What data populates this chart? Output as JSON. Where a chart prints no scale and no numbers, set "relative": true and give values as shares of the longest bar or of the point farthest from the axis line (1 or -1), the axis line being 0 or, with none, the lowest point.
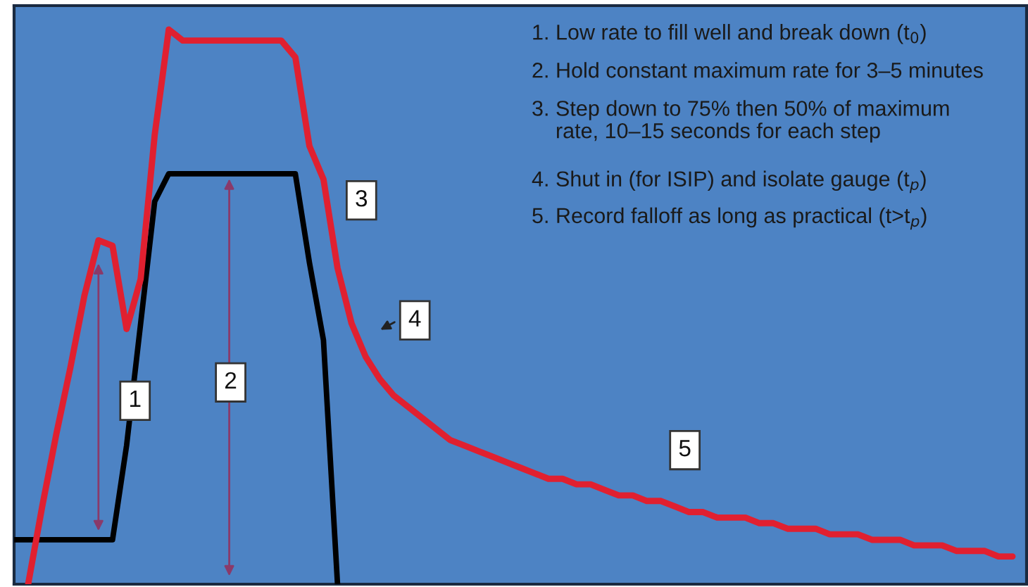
{
  "chart_data": {
    "type": "line",
    "relative": true,
    "marker": "none",
    "line_style": "solid",
    "categories": [
      null,
      null,
      null,
      null,
      null,
      null,
      null,
      null,
      null,
      null,
      null,
      null,
      null,
      null,
      null,
      null,
      null,
      null,
      null,
      null,
      null,
      null,
      null,
      null,
      null,
      null,
      null,
      null,
      null,
      null,
      null,
      null,
      null,
      null,
      null,
      null,
      null,
      null,
      null,
      null,
      null,
      null,
      null,
      null,
      null,
      null,
      null,
      null,
      null,
      null,
      null,
      null,
      null,
      null,
      null,
      null,
      null,
      null,
      null,
      null,
      null,
      null,
      null,
      null,
      null,
      null,
      null,
      null,
      null,
      null,
      null,
      null
    ],
    "series": [
      {
        "color": "#000000",
        "values": [
          0.08,
          0.08,
          0.08,
          0.08,
          0.08,
          0.08,
          0.08,
          0.08,
          0.25,
          0.47,
          0.69,
          0.74,
          0.74,
          0.74,
          0.74,
          0.74,
          0.74,
          0.74,
          0.74,
          0.74,
          0.74,
          0.58,
          0.44,
          0.0,
          null,
          null,
          null,
          null,
          null,
          null,
          null,
          null,
          null,
          null,
          null,
          null,
          null,
          null,
          null,
          null,
          null,
          null,
          null,
          null,
          null,
          null,
          null,
          null,
          null,
          null,
          null,
          null,
          null,
          null,
          null,
          null,
          null,
          null,
          null,
          null,
          null,
          null,
          null,
          null,
          null,
          null,
          null,
          null,
          null,
          null,
          null,
          null
        ]
      },
      {
        "color": "#e02030",
        "values": [
          null,
          0.0,
          0.14,
          0.27,
          0.39,
          0.52,
          0.62,
          0.61,
          0.46,
          0.55,
          0.81,
          1.0,
          0.98,
          0.98,
          0.98,
          0.98,
          0.98,
          0.98,
          0.98,
          0.98,
          0.95,
          0.79,
          0.73,
          0.57,
          0.47,
          0.41,
          0.37,
          0.34,
          0.32,
          0.3,
          0.28,
          0.26,
          0.25,
          0.24,
          0.23,
          0.22,
          0.21,
          0.2,
          0.19,
          0.19,
          0.18,
          0.18,
          0.17,
          0.16,
          0.16,
          0.15,
          0.15,
          0.14,
          0.13,
          0.13,
          0.12,
          0.12,
          0.12,
          0.11,
          0.11,
          0.1,
          0.1,
          0.1,
          0.09,
          0.09,
          0.09,
          0.08,
          0.08,
          0.08,
          0.07,
          0.07,
          0.07,
          0.06,
          0.06,
          0.06,
          0.05,
          0.05
        ]
      }
    ],
    "annotations": [
      "1. Low rate to fill well and break down (t$_{0}$)",
      "2. Hold constant maximum rate for 3–5 minutes",
      "3. Step down to 75% then 50% of maximum\n    rate, 10–15 seconds for each step",
      "4. Shut in (for ISIP) and isolate gauge (t$_{p}$)",
      "5. Record falloff as long as practical (t>t$_{p}$)",
      "1",
      "2",
      "3",
      "4",
      "5"
    ]
  }
}
